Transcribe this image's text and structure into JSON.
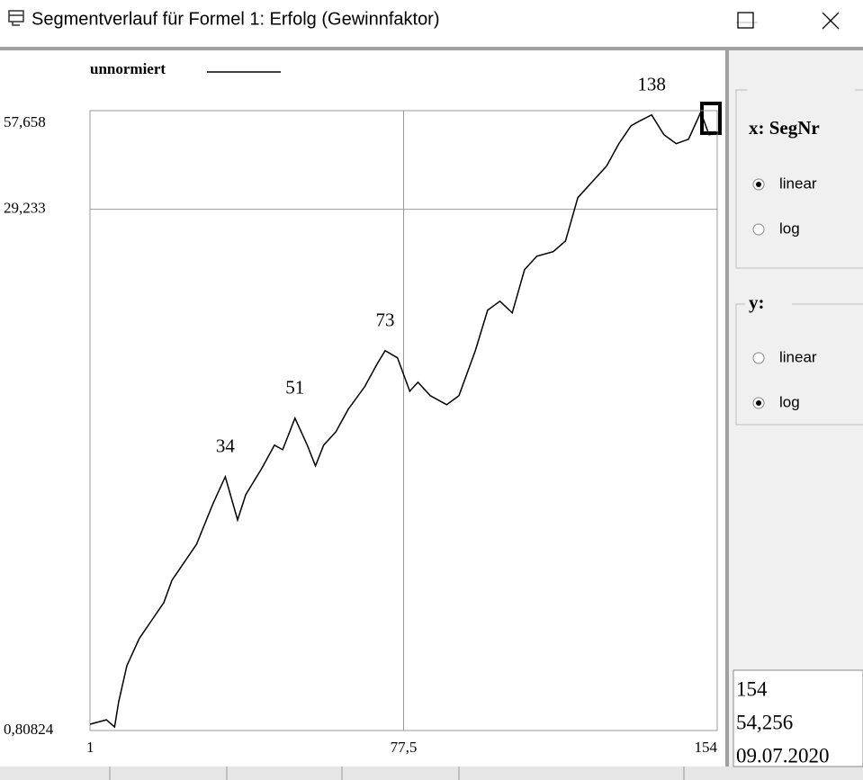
{
  "window": {
    "title": "Segmentverlauf für Formel 1: Erfolg (Gewinnfaktor)"
  },
  "chart_data": {
    "type": "line",
    "x": [
      1,
      5,
      7,
      8,
      10,
      13,
      16,
      19,
      21,
      24,
      27,
      31,
      34,
      37,
      39,
      43,
      46,
      48,
      51,
      54,
      56,
      58,
      61,
      64,
      68,
      71,
      73,
      76,
      79,
      81,
      84,
      88,
      91,
      95,
      98,
      101,
      104,
      107,
      110,
      114,
      117,
      120,
      124,
      127,
      130,
      133,
      135,
      138,
      141,
      144,
      147,
      150,
      152,
      154
    ],
    "series": [
      {
        "name": "unnormiert",
        "color": "#000000",
        "values": [
          0.844,
          0.87,
          0.828,
          0.985,
          1.263,
          1.521,
          1.722,
          1.949,
          2.274,
          2.574,
          2.915,
          3.852,
          4.639,
          3.446,
          4.099,
          4.936,
          5.764,
          5.587,
          6.94,
          5.764,
          4.997,
          5.764,
          6.324,
          7.383,
          8.617,
          10.06,
          11.05,
          10.52,
          8.357,
          8.892,
          8.105,
          7.616,
          8.105,
          11.05,
          14.6,
          15.53,
          14.33,
          19.29,
          21.17,
          21.84,
          23.52,
          31.68,
          35.86,
          39.35,
          45.93,
          51.99,
          53.63,
          56.0,
          48.86,
          45.93,
          47.37,
          57.05,
          48.86,
          49.47
        ]
      }
    ],
    "annotations": [
      34,
      51,
      73,
      138
    ],
    "xlim": [
      1,
      154
    ],
    "xticks": [
      1,
      {
        "value": 77.5,
        "label": "77,5"
      },
      154
    ],
    "ylim": [
      0.80824,
      57.658
    ],
    "yticks": [
      {
        "value": 0.80824,
        "label": "0,80824"
      },
      {
        "value": 29.233,
        "label": "29,233"
      },
      {
        "value": 57.658,
        "label": "57,658"
      }
    ],
    "yscale": "log",
    "grid": true
  },
  "panel": {
    "x_group": {
      "label": "x: SegNr",
      "options": [
        "linear",
        "log"
      ],
      "selected": "linear"
    },
    "y_group": {
      "label": "y:",
      "options": [
        "linear",
        "log"
      ],
      "selected": "log"
    },
    "readout": [
      "154",
      "54,256",
      "09.07.2020"
    ]
  }
}
